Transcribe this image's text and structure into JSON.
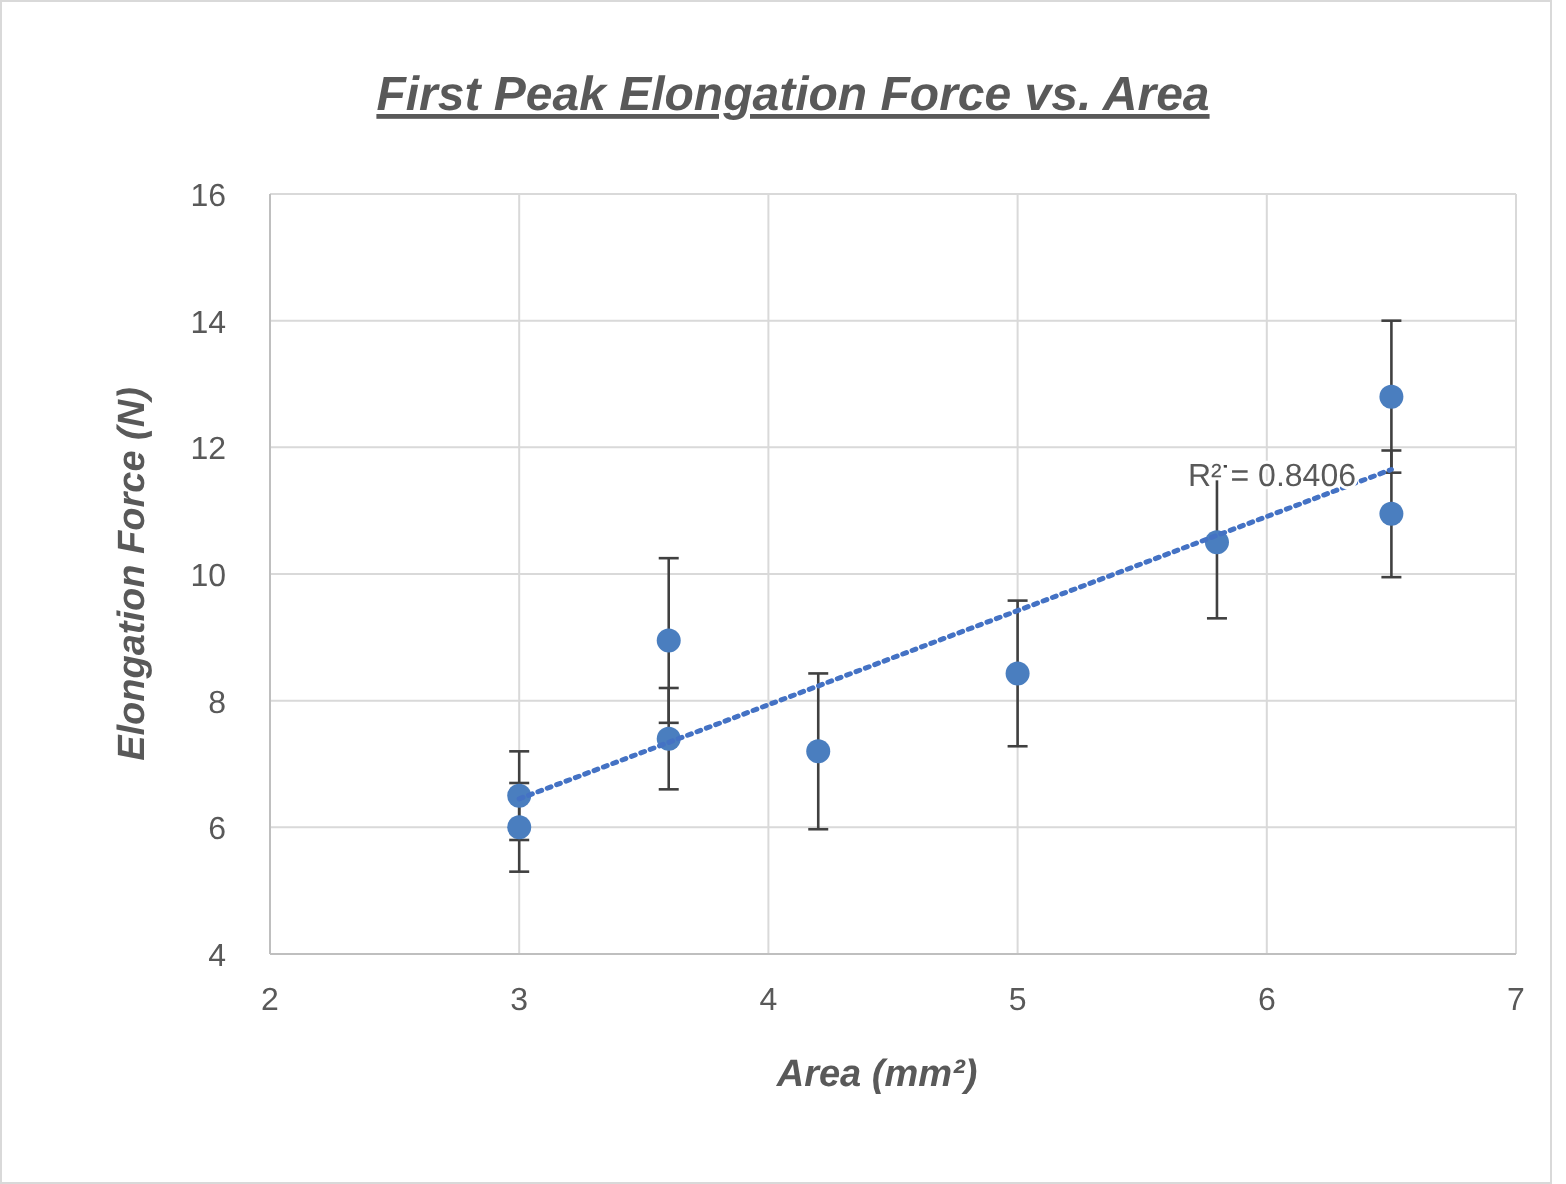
{
  "chart_data": {
    "type": "scatter",
    "title": "First Peak Elongation Force vs. Area",
    "xlabel": "Area (mm²)",
    "ylabel": "Elongation Force (N)",
    "x": [
      3,
      3,
      3.6,
      3.6,
      4.2,
      5,
      5.8,
      6.5,
      6.5
    ],
    "series": [
      {
        "color": "#4a7ebf",
        "values": [
          6.5,
          6.0,
          8.95,
          7.4,
          7.2,
          8.43,
          10.5,
          12.8,
          10.95
        ],
        "errors": [
          0.7,
          0.7,
          1.3,
          0.8,
          1.23,
          1.15,
          1.2,
          1.2,
          1.0
        ]
      },
      {
        "type": "line",
        "x": [
          3,
          6.5
        ],
        "values": [
          6.45,
          11.65
        ],
        "color": "#4472c4",
        "line_style": "dotted",
        "marker": "none"
      }
    ],
    "annotations": [
      "R² = 0.8406"
    ],
    "xlim": [
      2,
      7
    ],
    "xticks": [
      2,
      3,
      4,
      5,
      6,
      7
    ],
    "ylim": [
      4,
      16
    ],
    "yticks": [
      4,
      6,
      8,
      10,
      12,
      14,
      16
    ],
    "grid": true,
    "marker": "circle"
  }
}
